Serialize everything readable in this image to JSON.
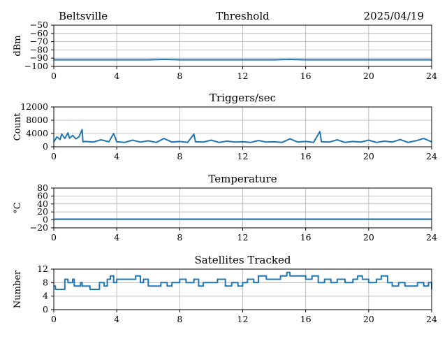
{
  "header": {
    "station": "Beltsville",
    "date": "2025/04/19"
  },
  "colors": {
    "series": "#1f77b4",
    "grid": "#b0b0b0",
    "axis": "#000000"
  },
  "chart_data": [
    {
      "type": "line",
      "title": "Threshold",
      "xlabel": "",
      "ylabel": "dBm",
      "xlim": [
        0,
        24
      ],
      "ylim": [
        -100,
        -50
      ],
      "xticks": [
        0,
        4,
        8,
        12,
        16,
        20,
        24
      ],
      "yticks": [
        -100,
        -90,
        -80,
        -70,
        -60,
        -50
      ],
      "grid": true,
      "series": [
        {
          "x": [
            0,
            2,
            4,
            6,
            7,
            8,
            10,
            12,
            14,
            15,
            16,
            18,
            20,
            22,
            24
          ],
          "y": [
            -92,
            -92,
            -92,
            -92,
            -91.5,
            -92,
            -92,
            -92,
            -92,
            -91.5,
            -92,
            -92,
            -92,
            -92,
            -92
          ]
        }
      ]
    },
    {
      "type": "line",
      "title": "Triggers/sec",
      "xlabel": "",
      "ylabel": "Count",
      "xlim": [
        0,
        24
      ],
      "ylim": [
        0,
        12000
      ],
      "xticks": [
        0,
        4,
        8,
        12,
        16,
        20,
        24
      ],
      "yticks": [
        0,
        4000,
        8000,
        12000
      ],
      "grid": true,
      "series": [
        {
          "x": [
            0,
            0.2,
            0.4,
            0.5,
            0.7,
            0.9,
            1.0,
            1.2,
            1.4,
            1.6,
            1.8,
            1.85,
            2.0,
            2.5,
            3.0,
            3.5,
            3.8,
            4.0,
            4.5,
            5.0,
            5.5,
            6.0,
            6.5,
            7.0,
            7.5,
            8.0,
            8.5,
            8.9,
            9.0,
            9.5,
            10.0,
            10.5,
            11.0,
            11.5,
            12.0,
            12.5,
            13.0,
            13.5,
            14.0,
            14.5,
            15.0,
            15.5,
            16.0,
            16.5,
            16.9,
            17.0,
            17.5,
            18.0,
            18.5,
            19.0,
            19.5,
            20.0,
            20.5,
            21.0,
            21.5,
            22.0,
            22.5,
            23.0,
            23.5,
            24.0
          ],
          "y": [
            1500,
            3000,
            2200,
            3800,
            2500,
            4200,
            2600,
            3400,
            2400,
            3000,
            5200,
            1500,
            1600,
            1400,
            2100,
            1500,
            4000,
            1500,
            1300,
            2000,
            1400,
            1800,
            1300,
            2500,
            1400,
            1600,
            1300,
            3800,
            1500,
            1400,
            2000,
            1300,
            1700,
            1400,
            1500,
            1300,
            1900,
            1400,
            1500,
            1300,
            2400,
            1400,
            1600,
            1300,
            4600,
            1500,
            1400,
            2100,
            1300,
            1600,
            1400,
            2000,
            1300,
            1700,
            1400,
            2200,
            1300,
            1800,
            2500,
            1500
          ]
        }
      ]
    },
    {
      "type": "line",
      "title": "Temperature",
      "xlabel": "",
      "ylabel": "°C",
      "xlim": [
        0,
        24
      ],
      "ylim": [
        -20,
        80
      ],
      "xticks": [
        0,
        4,
        8,
        12,
        16,
        20,
        24
      ],
      "yticks": [
        -20,
        0,
        20,
        40,
        60,
        80
      ],
      "grid": true,
      "series": [
        {
          "x": [
            0,
            24
          ],
          "y": [
            2,
            2
          ]
        }
      ]
    },
    {
      "type": "line",
      "title": "Satellites Tracked",
      "xlabel": "",
      "ylabel": "Number",
      "xlim": [
        0,
        24
      ],
      "ylim": [
        0,
        12
      ],
      "xticks": [
        0,
        4,
        8,
        12,
        16,
        20,
        24
      ],
      "yticks": [
        0,
        4,
        8,
        12
      ],
      "grid": true,
      "series": [
        {
          "step": true,
          "x": [
            0,
            0.1,
            0.7,
            0.9,
            1.2,
            1.3,
            1.7,
            1.8,
            2.3,
            2.9,
            3.2,
            3.4,
            3.6,
            3.8,
            4.0,
            4.5,
            5.2,
            5.5,
            5.7,
            6.0,
            6.4,
            6.8,
            7.2,
            7.5,
            8.0,
            8.4,
            8.9,
            9.2,
            9.5,
            10.0,
            10.4,
            10.9,
            11.3,
            11.7,
            12.0,
            12.3,
            12.7,
            13.0,
            13.5,
            14.0,
            14.4,
            14.8,
            15.0,
            15.5,
            16.0,
            16.4,
            16.8,
            17.2,
            17.6,
            18.0,
            18.5,
            19.0,
            19.3,
            19.6,
            20.0,
            20.5,
            20.8,
            21.2,
            21.5,
            21.9,
            22.3,
            22.7,
            23.1,
            23.5,
            23.8,
            24.0
          ],
          "y": [
            7,
            6,
            9,
            8,
            9,
            7,
            8,
            7,
            6,
            8,
            7,
            9,
            10,
            8,
            9,
            9,
            10,
            8,
            9,
            7,
            7,
            8,
            7,
            8,
            9,
            8,
            9,
            7,
            8,
            8,
            9,
            7,
            8,
            7,
            8,
            9,
            8,
            10,
            9,
            9,
            10,
            11,
            10,
            10,
            9,
            10,
            8,
            9,
            8,
            9,
            8,
            9,
            10,
            9,
            8,
            9,
            10,
            8,
            7,
            8,
            7,
            7,
            8,
            7,
            8,
            6
          ]
        }
      ]
    }
  ]
}
